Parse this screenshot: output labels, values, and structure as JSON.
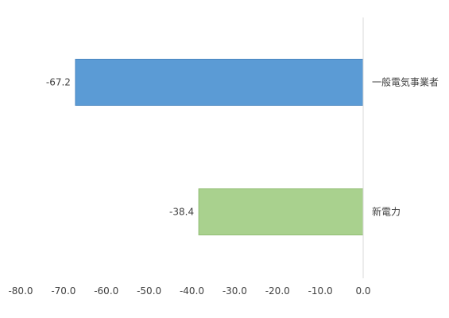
{
  "chart_data": {
    "type": "bar",
    "orientation": "horizontal",
    "categories": [
      "一般電気事業者",
      "新電力"
    ],
    "values": [
      -67.2,
      -38.4
    ],
    "data_labels": [
      "-67.2",
      "-38.4"
    ],
    "bar_colors": [
      "#5b9bd5",
      "#a9d18e"
    ],
    "bar_border_colors": [
      "#4a86c0",
      "#92bd74"
    ],
    "xlim": [
      -80,
      0
    ],
    "xticks": [
      -80,
      -70,
      -60,
      -50,
      -40,
      -30,
      -20,
      -10,
      0
    ],
    "xtick_labels": [
      "-80.0",
      "-70.0",
      "-60.0",
      "-50.0",
      "-40.0",
      "-30.0",
      "-20.0",
      "-10.0",
      "0.0"
    ],
    "grid": false,
    "legend": "none",
    "category_label_position": "right-of-zero-axis"
  }
}
